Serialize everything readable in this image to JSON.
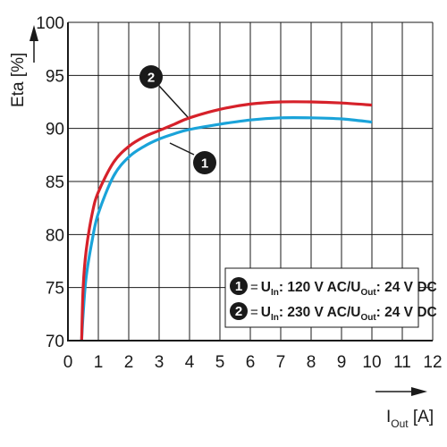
{
  "chart_data": {
    "type": "line",
    "ylabel": "Eta [%]",
    "xlabel": {
      "main": "I",
      "sub": "Out",
      "unit": " [A]"
    },
    "xlim": [
      0,
      12
    ],
    "ylim": [
      70,
      100
    ],
    "x_ticks": [
      "0",
      "1",
      "2",
      "3",
      "4",
      "5",
      "6",
      "7",
      "8",
      "9",
      "10",
      "11",
      "12"
    ],
    "y_ticks": [
      "70",
      "75",
      "80",
      "85",
      "90",
      "95",
      "100"
    ],
    "grid": true,
    "series": [
      {
        "marker": "1",
        "color": "#1aa3d9",
        "x": [
          0.45,
          0.5,
          0.6,
          0.8,
          1.0,
          1.5,
          2.0,
          2.5,
          3.0,
          3.5,
          4.0,
          5.0,
          6.0,
          7.0,
          8.0,
          9.0,
          10.0
        ],
        "y": [
          70.0,
          72.5,
          76.0,
          79.5,
          82.0,
          85.5,
          87.3,
          88.3,
          89.0,
          89.5,
          89.9,
          90.4,
          90.8,
          91.0,
          91.0,
          90.9,
          90.6
        ]
      },
      {
        "marker": "2",
        "color": "#d6212a",
        "x": [
          0.45,
          0.5,
          0.6,
          0.8,
          1.0,
          1.5,
          2.0,
          2.5,
          3.0,
          3.5,
          4.0,
          5.0,
          6.0,
          7.0,
          8.0,
          9.0,
          10.0
        ],
        "y": [
          70.0,
          75.0,
          78.5,
          82.0,
          84.0,
          86.8,
          88.3,
          89.2,
          89.8,
          90.4,
          91.0,
          91.8,
          92.3,
          92.5,
          92.5,
          92.4,
          92.2
        ]
      }
    ],
    "legend": {
      "placement": "bottom-right",
      "entries": [
        {
          "marker": "1",
          "u": "U",
          "u_sub": "In",
          "text1": ": 120 V AC/U",
          "out_sub": "Out",
          "text2": ": 24 V DC"
        },
        {
          "marker": "2",
          "u": "U",
          "u_sub": "In",
          "text1": ": 230 V AC/U",
          "out_sub": "Out",
          "text2": ": 24 V DC"
        }
      ]
    }
  }
}
